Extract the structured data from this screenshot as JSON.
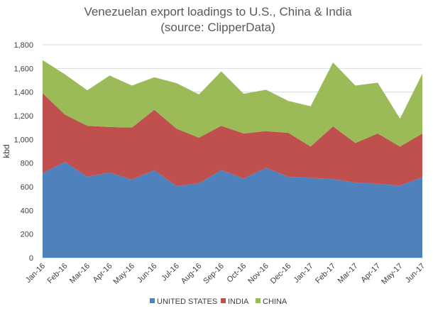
{
  "chart_data": {
    "type": "area",
    "stacked": true,
    "title": [
      "Venezuelan export loadings to U.S., China & India",
      "(source: ClipperData)"
    ],
    "ylabel": "kbd",
    "xlabel": "",
    "ylim": [
      0,
      1800
    ],
    "yticks": [
      0,
      200,
      400,
      600,
      800,
      1000,
      1200,
      1400,
      1600,
      1800
    ],
    "ytick_labels": [
      "0",
      "200",
      "400",
      "600",
      "800",
      "1,000",
      "1,200",
      "1,400",
      "1,600",
      "1,800"
    ],
    "grid": true,
    "legend_position": "bottom",
    "categories": [
      "Jan-16",
      "Feb-16",
      "Mar-16",
      "Apr-16",
      "May-16",
      "Jun-16",
      "Jul-16",
      "Aug-16",
      "Sep-16",
      "Oct-16",
      "Nov-16",
      "Dec-16",
      "Jan-17",
      "Feb-17",
      "Mar-17",
      "Apr-17",
      "May-17",
      "Jun-17"
    ],
    "series": [
      {
        "name": "UNITED STATES",
        "color": "#4f81bd",
        "values": [
          715,
          810,
          685,
          720,
          660,
          740,
          605,
          630,
          740,
          670,
          760,
          685,
          675,
          665,
          635,
          625,
          610,
          680
        ]
      },
      {
        "name": "INDIA",
        "color": "#c0504d",
        "values": [
          675,
          400,
          430,
          385,
          440,
          510,
          485,
          385,
          375,
          380,
          310,
          370,
          265,
          445,
          335,
          425,
          330,
          370
        ]
      },
      {
        "name": "CHINA",
        "color": "#9bbb59",
        "values": [
          280,
          340,
          300,
          435,
          355,
          275,
          385,
          365,
          460,
          335,
          350,
          270,
          340,
          540,
          485,
          430,
          235,
          505
        ]
      }
    ]
  }
}
